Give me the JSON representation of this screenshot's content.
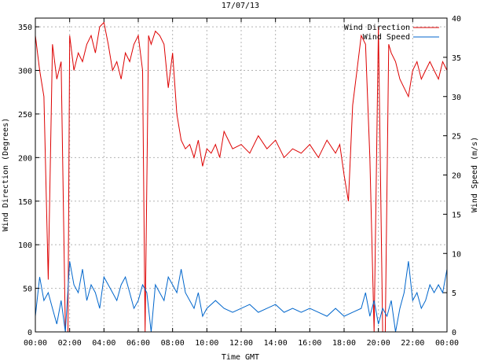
{
  "chart_data": {
    "type": "line",
    "title": "17/07/13",
    "xlabel": "Time GMT",
    "ylabel_left": "Wind Direction (Degrees)",
    "ylabel_right": "Wind Speed (m/s)",
    "x_ticks": [
      "00:00",
      "02:00",
      "04:00",
      "06:00",
      "08:00",
      "10:00",
      "12:00",
      "14:00",
      "16:00",
      "18:00",
      "20:00",
      "22:00",
      "00:00"
    ],
    "xlim_hours": [
      0,
      24
    ],
    "ylim_left": [
      0,
      360
    ],
    "ylim_right": [
      0,
      40
    ],
    "y_ticks_left": [
      0,
      50,
      100,
      150,
      200,
      250,
      300,
      350
    ],
    "y_ticks_right": [
      0,
      5,
      10,
      15,
      20,
      25,
      30,
      35,
      40
    ],
    "grid": true,
    "legend_position": "top-right",
    "series": [
      {
        "name": "Wind Direction",
        "axis": "left",
        "color": "#dd0000",
        "x": [
          0.0,
          0.25,
          0.5,
          0.75,
          1.0,
          1.25,
          1.5,
          1.75,
          1.9,
          2.0,
          2.25,
          2.5,
          2.75,
          3.0,
          3.25,
          3.5,
          3.75,
          4.0,
          4.25,
          4.5,
          4.75,
          5.0,
          5.25,
          5.5,
          5.75,
          6.0,
          6.25,
          6.4,
          6.6,
          6.75,
          7.0,
          7.25,
          7.5,
          7.75,
          8.0,
          8.25,
          8.5,
          8.75,
          9.0,
          9.25,
          9.5,
          9.75,
          10.0,
          10.25,
          10.5,
          10.75,
          11.0,
          11.5,
          12.0,
          12.5,
          13.0,
          13.5,
          14.0,
          14.5,
          15.0,
          15.5,
          16.0,
          16.5,
          17.0,
          17.5,
          17.75,
          18.0,
          18.25,
          18.5,
          18.75,
          19.0,
          19.25,
          19.5,
          19.75,
          20.0,
          20.25,
          20.4,
          20.6,
          20.75,
          21.0,
          21.25,
          21.5,
          21.75,
          22.0,
          22.25,
          22.5,
          22.75,
          23.0,
          23.25,
          23.5,
          23.75,
          24.0
        ],
        "values": [
          340,
          300,
          270,
          60,
          330,
          290,
          310,
          0,
          0,
          340,
          300,
          320,
          310,
          330,
          340,
          320,
          350,
          355,
          330,
          300,
          310,
          290,
          320,
          310,
          330,
          340,
          300,
          0,
          340,
          330,
          345,
          340,
          330,
          280,
          320,
          250,
          220,
          210,
          215,
          200,
          220,
          190,
          210,
          205,
          215,
          200,
          230,
          210,
          215,
          205,
          225,
          210,
          220,
          200,
          210,
          205,
          215,
          200,
          220,
          205,
          215,
          180,
          150,
          260,
          300,
          340,
          330,
          200,
          0,
          350,
          0,
          0,
          330,
          320,
          310,
          290,
          280,
          270,
          300,
          310,
          290,
          300,
          310,
          300,
          290,
          310,
          300
        ]
      },
      {
        "name": "Wind Speed",
        "axis": "right",
        "color": "#0066cc",
        "x": [
          0.0,
          0.25,
          0.5,
          0.75,
          1.0,
          1.25,
          1.5,
          1.75,
          2.0,
          2.25,
          2.5,
          2.75,
          3.0,
          3.25,
          3.5,
          3.75,
          4.0,
          4.25,
          4.5,
          4.75,
          5.0,
          5.25,
          5.5,
          5.75,
          6.0,
          6.25,
          6.5,
          6.75,
          7.0,
          7.25,
          7.5,
          7.75,
          8.0,
          8.25,
          8.5,
          8.75,
          9.0,
          9.25,
          9.5,
          9.75,
          10.0,
          10.5,
          11.0,
          11.5,
          12.0,
          12.5,
          13.0,
          13.5,
          14.0,
          14.5,
          15.0,
          15.5,
          16.0,
          16.5,
          17.0,
          17.5,
          18.0,
          18.5,
          19.0,
          19.25,
          19.5,
          19.75,
          20.0,
          20.25,
          20.5,
          20.75,
          21.0,
          21.25,
          21.5,
          21.75,
          22.0,
          22.25,
          22.5,
          22.75,
          23.0,
          23.25,
          23.5,
          23.75,
          24.0
        ],
        "values": [
          2,
          7,
          4,
          5,
          3,
          1,
          4,
          0,
          9,
          6,
          5,
          8,
          4,
          6,
          5,
          3,
          7,
          6,
          5,
          4,
          6,
          7,
          5,
          3,
          4,
          6,
          5,
          0,
          6,
          5,
          4,
          7,
          6,
          5,
          8,
          5,
          4,
          3,
          5,
          2,
          3,
          4,
          3,
          2.5,
          3,
          3.5,
          2.5,
          3,
          3.5,
          2.5,
          3,
          2.5,
          3,
          2.5,
          2,
          3,
          2,
          2.5,
          3,
          5,
          2,
          4,
          1,
          3,
          2,
          4,
          0,
          3,
          5,
          9,
          4,
          5,
          3,
          4,
          6,
          5,
          6,
          5,
          8
        ]
      }
    ]
  }
}
